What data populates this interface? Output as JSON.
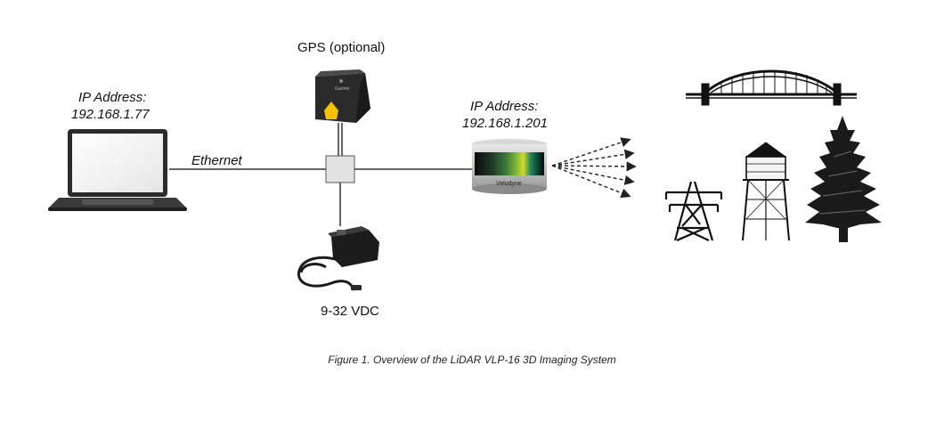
{
  "laptop": {
    "ip_label": "IP Address:",
    "ip_value": "192.168.1.77"
  },
  "ethernet_label": "Ethernet",
  "gps_label": "GPS (optional)",
  "gps_brand": "Garmin",
  "power_label": "9-32 VDC",
  "lidar": {
    "ip_label": "IP Address:",
    "ip_value": "192.168.1.201",
    "brand": "Velodyne"
  },
  "caption": "Figure 1. Overview of the LiDAR VLP-16 3D Imaging System",
  "colors": {
    "line": "#333333",
    "gps_accent": "#f2c200",
    "lidar_band": [
      "#0a0a0a",
      "#1f3a2a",
      "#3a7a3a",
      "#7ab83a",
      "#d9d92a",
      "#2a8a5a",
      "#0a4a3a",
      "#0a0a0a"
    ]
  }
}
